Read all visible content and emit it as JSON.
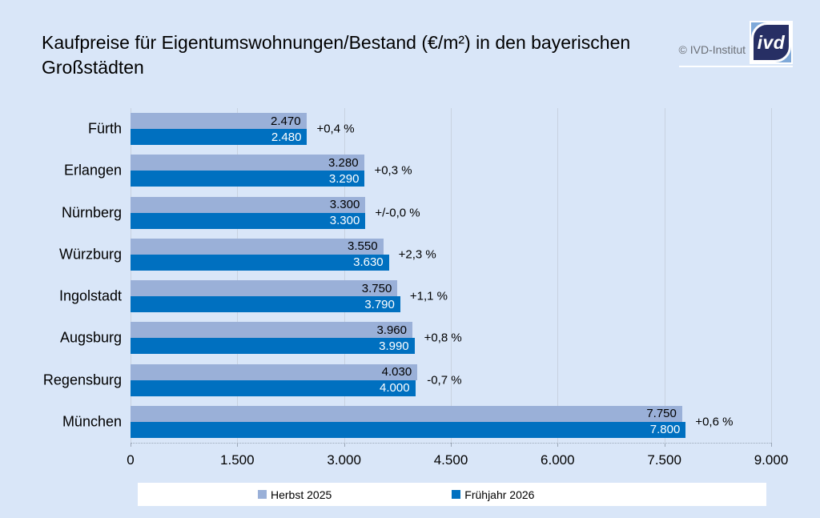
{
  "title": "Kaufpreise für Eigentumswohnungen/Bestand (€/m²) in den bayerischen Großstädten",
  "brand": {
    "copyright": "© IVD-Institut",
    "logo_text": "ivd",
    "logo_navy": "#272f64",
    "logo_lightblue": "#7fa9d9"
  },
  "chart_data": {
    "type": "bar",
    "orientation": "horizontal",
    "title": "Kaufpreise für Eigentumswohnungen/Bestand (€/m²) in den bayerischen Großstädten",
    "categories": [
      "Fürth",
      "Erlangen",
      "Nürnberg",
      "Würzburg",
      "Ingolstadt",
      "Augsburg",
      "Regensburg",
      "München"
    ],
    "series": [
      {
        "name": "Herbst 2025",
        "color": "#9ab0d8",
        "values": [
          2470,
          3280,
          3300,
          3550,
          3750,
          3960,
          4030,
          7750
        ],
        "labels": [
          "2.470",
          "3.280",
          "3.300",
          "3.550",
          "3.750",
          "3.960",
          "4.030",
          "7.750"
        ]
      },
      {
        "name": "Frühjahr 2026",
        "color": "#0070c0",
        "values": [
          2480,
          3290,
          3300,
          3630,
          3790,
          3990,
          4000,
          7800
        ],
        "labels": [
          "2.480",
          "3.290",
          "3.300",
          "3.630",
          "3.790",
          "3.990",
          "4.000",
          "7.800"
        ]
      }
    ],
    "change_labels": [
      "+0,4 %",
      "+0,3 %",
      "+/-0,0 %",
      "+2,3 %",
      "+1,1 %",
      "+0,8 %",
      "-0,7 %",
      "+0,6 %"
    ],
    "x_ticks": [
      "0",
      "1.500",
      "3.000",
      "4.500",
      "6.000",
      "7.500",
      "9.000"
    ],
    "xlim": [
      0,
      9000
    ],
    "grid": true,
    "legend_position": "bottom"
  }
}
